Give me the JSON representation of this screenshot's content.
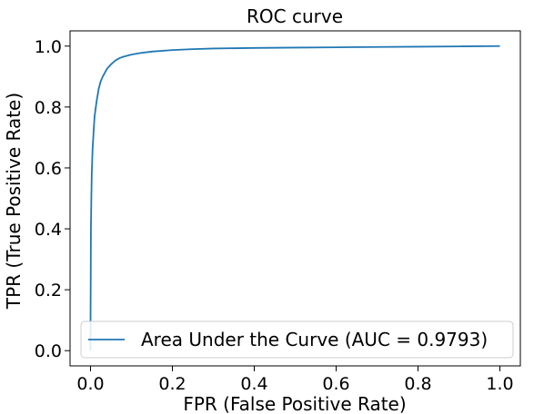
{
  "chart_data": {
    "type": "line",
    "title": "ROC curve",
    "xlabel": "FPR (False Positive Rate)",
    "ylabel": "TPR (True Positive Rate)",
    "xlim": [
      -0.05,
      1.05
    ],
    "ylim": [
      -0.05,
      1.05
    ],
    "xticks": [
      0.0,
      0.2,
      0.4,
      0.6,
      0.8,
      1.0
    ],
    "yticks": [
      0.0,
      0.2,
      0.4,
      0.6,
      0.8,
      1.0
    ],
    "xtick_labels": [
      "0.0",
      "0.2",
      "0.4",
      "0.6",
      "0.8",
      "1.0"
    ],
    "ytick_labels": [
      "0.0",
      "0.2",
      "0.4",
      "0.6",
      "0.8",
      "1.0"
    ],
    "grid": false,
    "legend_position": "lower-right",
    "series": [
      {
        "name": "Area Under the Curve (AUC = 0.9793)",
        "color": "#1f77b4",
        "x": [
          0.0,
          0.0,
          0.001,
          0.002,
          0.003,
          0.005,
          0.008,
          0.01,
          0.015,
          0.02,
          0.025,
          0.03,
          0.04,
          0.05,
          0.06,
          0.07,
          0.08,
          0.1,
          0.12,
          0.15,
          0.2,
          0.25,
          0.3,
          0.4,
          0.5,
          0.6,
          0.7,
          0.8,
          0.9,
          1.0
        ],
        "y": [
          0.0,
          0.08,
          0.4,
          0.5,
          0.58,
          0.66,
          0.73,
          0.77,
          0.82,
          0.86,
          0.885,
          0.9,
          0.925,
          0.94,
          0.952,
          0.96,
          0.965,
          0.972,
          0.977,
          0.982,
          0.987,
          0.99,
          0.992,
          0.994,
          0.995,
          0.996,
          0.997,
          0.998,
          0.999,
          1.0
        ]
      }
    ]
  }
}
